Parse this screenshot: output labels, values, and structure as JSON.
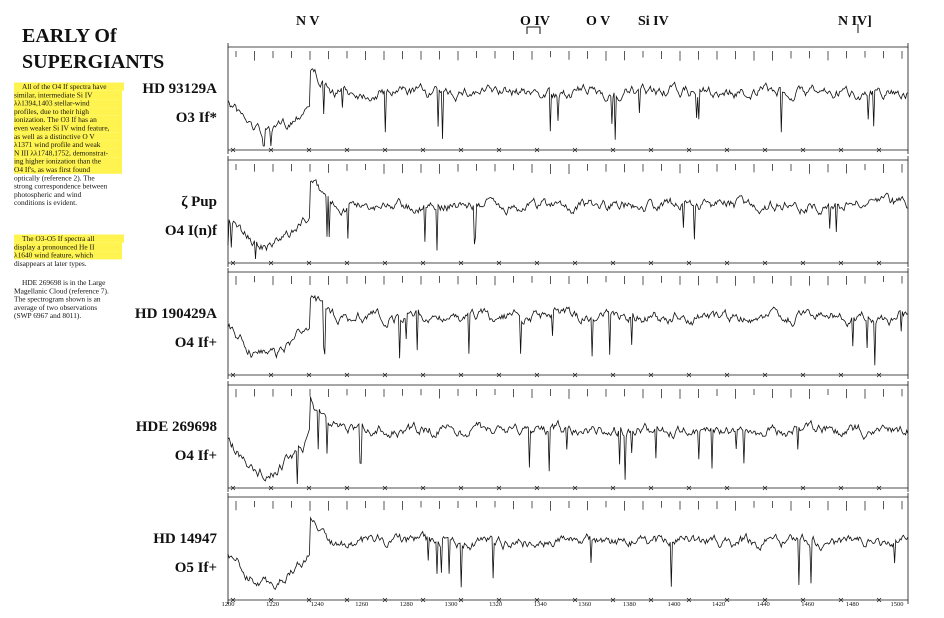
{
  "title": {
    "line1": "EARLY Of",
    "line2": "SUPERGIANTS"
  },
  "paragraphs": [
    [
      "All of the O4 If spectra have",
      "similar, intermediate Si IV",
      "λλ1394,1403 stellar-wind",
      "profiles, due to their high",
      "ionization. The O3 If has an",
      "even weaker Si IV wind feature,",
      "as well as a distinctive O V",
      "λ1371 wind profile and weak",
      "N III λλ1748,1752, demonstrat-",
      "ing higher ionization than the",
      "O4 If's, as was first found",
      "optically (reference 2). The",
      "strong correspondence between",
      "photospheric and wind",
      "conditions is evident."
    ],
    [
      "The O3-O5 If spectra all",
      "display a pronounced He II",
      "λ1640 wind feature, which",
      "disappears at later types."
    ],
    [
      "HDE 269698 is in the Large",
      "Magellanic Cloud (reference 7).",
      "The spectrogram shown is an",
      "average of two observations",
      "(SWP 6967 and 8011)."
    ]
  ],
  "line_labels": [
    "N V",
    "O IV",
    "O V",
    "Si IV",
    "N IV]"
  ],
  "stars": [
    {
      "name": "HD 93129A",
      "type": "O3 If*"
    },
    {
      "name": "ζ Pup",
      "type": "O4 I(n)f"
    },
    {
      "name": "HD 190429A",
      "type": "O4 If+"
    },
    {
      "name": "HDE 269698",
      "type": "O4 If+"
    },
    {
      "name": "HD 14947",
      "type": "O5 If+"
    }
  ],
  "wavelength_labels": [
    "1200",
    "1220",
    "1240",
    "1260",
    "1280",
    "1300",
    "1320",
    "1340",
    "1360",
    "1380",
    "1400",
    "1420",
    "1440",
    "1460",
    "1480",
    "1500"
  ]
}
